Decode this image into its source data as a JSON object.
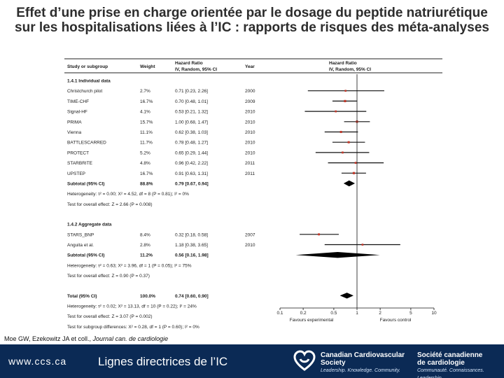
{
  "title": "Effet d’une prise en charge orientée par le dosage du peptide natriurétique sur les hospitalisations liées à l’IC : rapports de risques des méta-analyses",
  "citation": {
    "authors": "Moe GW, Ezekowitz JA et coll., ",
    "journal": "Journal can. de cardiologie"
  },
  "footer": {
    "url": "www.ccs.ca",
    "title": "Lignes directrices de l’IC",
    "org_en_line1": "Canadian Cardiovascular",
    "org_en_line2": "Society",
    "org_en_tag": "Leadership. Knowledge. Community.",
    "org_fr_line1": "Société canadienne",
    "org_fr_line2": "de cardiologie",
    "org_fr_tag": "Communauté. Connaissances. Leadership.",
    "colors": {
      "background": "#0b2a55",
      "logo": "#ffffff"
    },
    "logo_icon": "heart-ribbon-icon"
  },
  "chart_data": {
    "type": "forest",
    "title": "",
    "columns": {
      "study": "Study or subgroup",
      "weight": "Weight",
      "ratio": "Hazard Ratio\nIV, Random, 95% CI",
      "year": "Year",
      "plot": "Hazard Ratio\nIV, Random, 95% CI"
    },
    "xscale": "log",
    "xticks": [
      0.1,
      0.2,
      0.5,
      1,
      2,
      5,
      10
    ],
    "xtick_labels": [
      "0.1",
      "0.2",
      "0.5",
      "1",
      "2",
      "5",
      "10"
    ],
    "xlim": [
      0.1,
      10
    ],
    "null_line": 1,
    "favours_left": "Favours experimental",
    "favours_right": "Favours control",
    "marker_color": "#c0392b",
    "rows": [
      {
        "kind": "header",
        "label": "1.4.1 Individual data"
      },
      {
        "kind": "study",
        "label": "Christchurch pilot",
        "weight": "2.7%",
        "ci_text": "0.71 [0.23, 2.26]",
        "year": "2000",
        "hr": 0.71,
        "lo": 0.23,
        "hi": 2.26
      },
      {
        "kind": "study",
        "label": "TIME-CHF",
        "weight": "16.7%",
        "ci_text": "0.70 [0.48, 1.01]",
        "year": "2009",
        "hr": 0.7,
        "lo": 0.48,
        "hi": 1.01
      },
      {
        "kind": "study",
        "label": "Signal-HF",
        "weight": "4.1%",
        "ci_text": "0.53 [0.21, 1.32]",
        "year": "2010",
        "hr": 0.53,
        "lo": 0.21,
        "hi": 1.32
      },
      {
        "kind": "study",
        "label": "PRIMA",
        "weight": "15.7%",
        "ci_text": "1.00 [0.68, 1.47]",
        "year": "2010",
        "hr": 1.0,
        "lo": 0.68,
        "hi": 1.47
      },
      {
        "kind": "study",
        "label": "Vienna",
        "weight": "11.1%",
        "ci_text": "0.62 [0.38, 1.03]",
        "year": "2010",
        "hr": 0.62,
        "lo": 0.38,
        "hi": 1.03
      },
      {
        "kind": "study",
        "label": "BATTLESCARRED",
        "weight": "11.7%",
        "ci_text": "0.78 [0.48, 1.27]",
        "year": "2010",
        "hr": 0.78,
        "lo": 0.48,
        "hi": 1.27
      },
      {
        "kind": "study",
        "label": "PROTECT",
        "weight": "5.2%",
        "ci_text": "0.65 [0.29, 1.44]",
        "year": "2010",
        "hr": 0.65,
        "lo": 0.29,
        "hi": 1.44
      },
      {
        "kind": "study",
        "label": "STARBRITE",
        "weight": "4.8%",
        "ci_text": "0.96 [0.42, 2.22]",
        "year": "2011",
        "hr": 0.96,
        "lo": 0.42,
        "hi": 2.22
      },
      {
        "kind": "study",
        "label": "UPSTEP",
        "weight": "16.7%",
        "ci_text": "0.91 [0.63, 1.31]",
        "year": "2011",
        "hr": 0.91,
        "lo": 0.63,
        "hi": 1.31
      },
      {
        "kind": "subtotal",
        "label": "Subtotal (95% CI)",
        "weight": "88.8%",
        "ci_text": "0.79 [0.67, 0.94]",
        "hr": 0.79,
        "lo": 0.67,
        "hi": 0.94
      },
      {
        "kind": "note",
        "label": "Heterogeneity: τ² = 0.00; X² = 4.52, df = 8 (P = 0.81); I² = 0%"
      },
      {
        "kind": "note",
        "label": "Test for overall effect: Z = 2.66 (P = 0.008)"
      },
      {
        "kind": "gap"
      },
      {
        "kind": "header",
        "label": "1.4.2 Aggregate data"
      },
      {
        "kind": "study",
        "label": "STARS_BNP",
        "weight": "8.4%",
        "ci_text": "0.32 [0.18, 0.58]",
        "year": "2007",
        "hr": 0.32,
        "lo": 0.18,
        "hi": 0.58
      },
      {
        "kind": "study",
        "label": "Anguita et al.",
        "weight": "2.8%",
        "ci_text": "1.18 [0.38, 3.65]",
        "year": "2010",
        "hr": 1.18,
        "lo": 0.38,
        "hi": 3.65
      },
      {
        "kind": "subtotal",
        "label": "Subtotal (95% CI)",
        "weight": "11.2%",
        "ci_text": "0.56 [0.16, 1.98]",
        "hr": 0.56,
        "lo": 0.16,
        "hi": 1.98
      },
      {
        "kind": "note",
        "label": "Heterogeneity: τ² = 0.63; X² = 3.96, df = 1 (P = 0.05); I² = 75%"
      },
      {
        "kind": "note",
        "label": "Test for overall effect: Z = 0.90 (P = 0.37)"
      },
      {
        "kind": "gap"
      },
      {
        "kind": "total",
        "label": "Total (95% CI)",
        "weight": "100.0%",
        "ci_text": "0.74 [0.60, 0.90]",
        "hr": 0.74,
        "lo": 0.6,
        "hi": 0.9
      },
      {
        "kind": "note",
        "label": "Heterogeneity: τ² = 0.02; X² = 13.13, df = 10 (P = 0.22); I² = 24%"
      },
      {
        "kind": "note",
        "label": "Test for overall effect: Z = 3.07 (P = 0.002)"
      },
      {
        "kind": "note",
        "label": "Test for subgroup differences: X² = 0.28, df = 1 (P = 0.60); I² = 0%"
      }
    ]
  }
}
